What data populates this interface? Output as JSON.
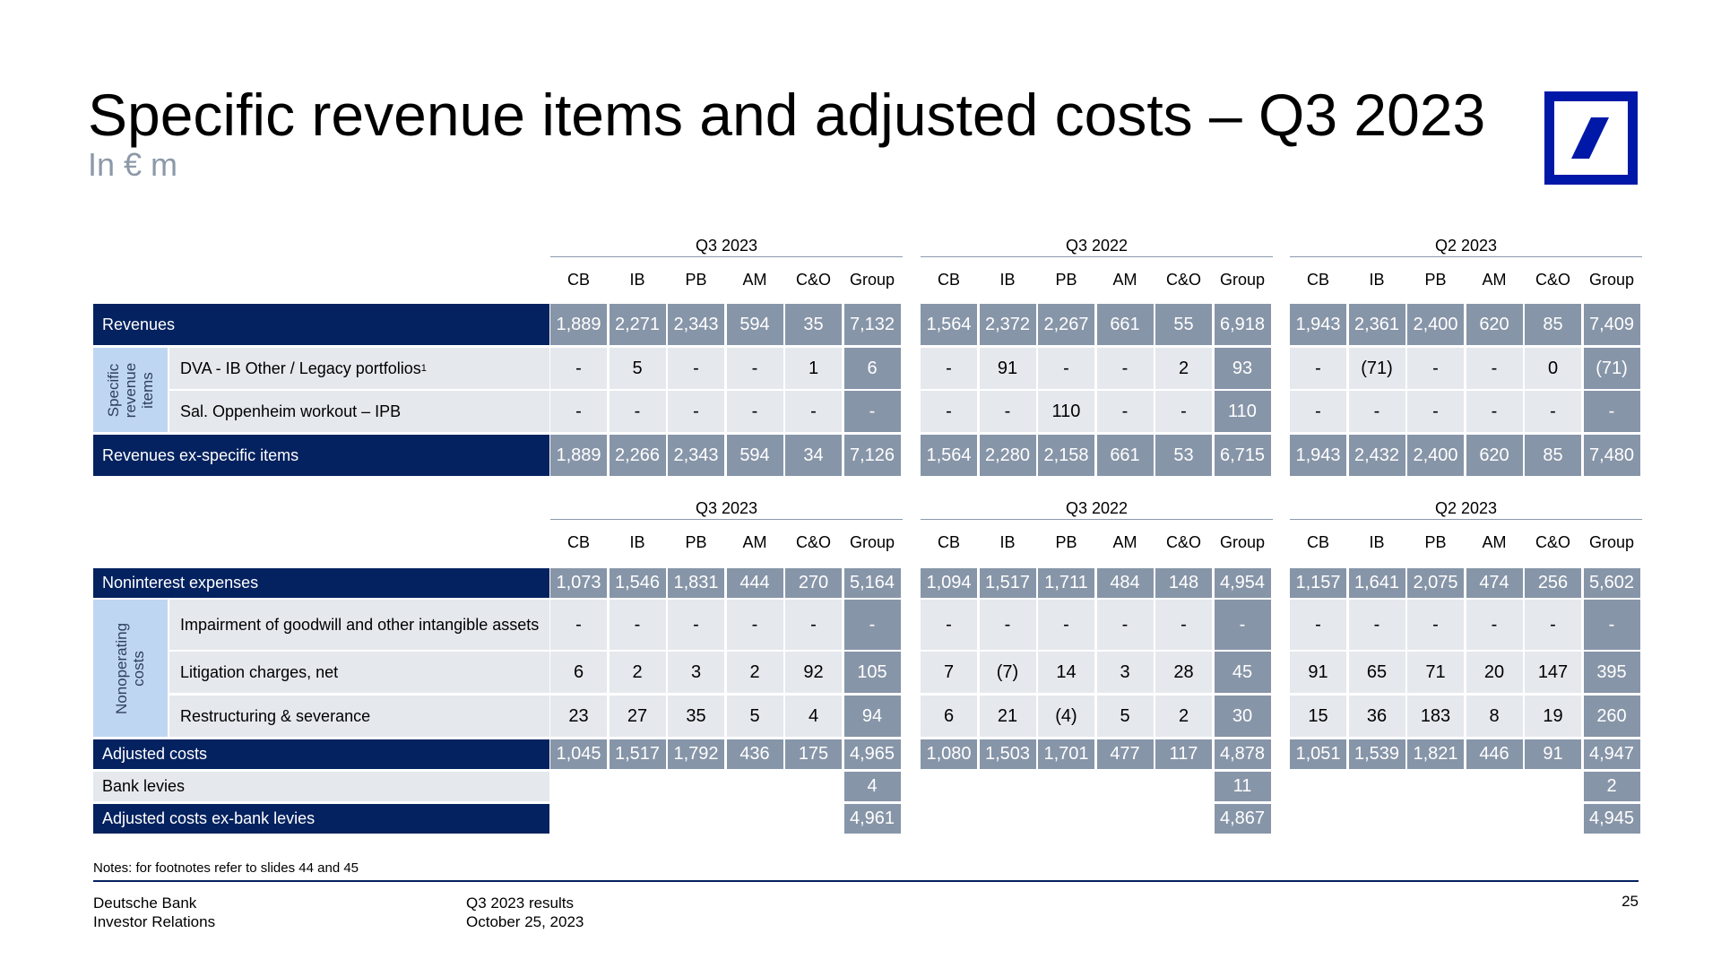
{
  "header": {
    "title": "Specific revenue items and adjusted costs – Q3 2023",
    "subtitle": "In € m"
  },
  "periods": [
    "Q3 2023",
    "Q3 2022",
    "Q2 2023"
  ],
  "columns": [
    "CB",
    "IB",
    "PB",
    "AM",
    "C&O",
    "Group"
  ],
  "table1": {
    "group_label": "Specific revenue items",
    "rows": [
      {
        "label": "Revenues",
        "style": "dark",
        "values": [
          [
            "1,889",
            "2,271",
            "2,343",
            "594",
            "35",
            "7,132"
          ],
          [
            "1,564",
            "2,372",
            "2,267",
            "661",
            "55",
            "6,918"
          ],
          [
            "1,943",
            "2,361",
            "2,400",
            "620",
            "85",
            "7,409"
          ]
        ]
      },
      {
        "label": "DVA - IB Other / Legacy portfolios",
        "sup": "1",
        "style": "light",
        "values": [
          [
            "-",
            "5",
            "-",
            "-",
            "1",
            "6"
          ],
          [
            "-",
            "91",
            "-",
            "-",
            "2",
            "93"
          ],
          [
            "-",
            "(71)",
            "-",
            "-",
            "0",
            "(71)"
          ]
        ]
      },
      {
        "label": "Sal. Oppenheim workout – IPB",
        "style": "light",
        "values": [
          [
            "-",
            "-",
            "-",
            "-",
            "-",
            "-"
          ],
          [
            "-",
            "-",
            "110",
            "-",
            "-",
            "110"
          ],
          [
            "-",
            "-",
            "-",
            "-",
            "-",
            "-"
          ]
        ]
      },
      {
        "label": "Revenues ex-specific items",
        "style": "dark",
        "values": [
          [
            "1,889",
            "2,266",
            "2,343",
            "594",
            "34",
            "7,126"
          ],
          [
            "1,564",
            "2,280",
            "2,158",
            "661",
            "53",
            "6,715"
          ],
          [
            "1,943",
            "2,432",
            "2,400",
            "620",
            "85",
            "7,480"
          ]
        ]
      }
    ]
  },
  "table2": {
    "group_label": "Nonoperating costs",
    "rows": [
      {
        "label": "Noninterest expenses",
        "style": "dark",
        "values": [
          [
            "1,073",
            "1,546",
            "1,831",
            "444",
            "270",
            "5,164"
          ],
          [
            "1,094",
            "1,517",
            "1,711",
            "484",
            "148",
            "4,954"
          ],
          [
            "1,157",
            "1,641",
            "2,075",
            "474",
            "256",
            "5,602"
          ]
        ]
      },
      {
        "label": "Impairment of goodwill and other intangible assets",
        "style": "light",
        "values": [
          [
            "-",
            "-",
            "-",
            "-",
            "-",
            "-"
          ],
          [
            "-",
            "-",
            "-",
            "-",
            "-",
            "-"
          ],
          [
            "-",
            "-",
            "-",
            "-",
            "-",
            "-"
          ]
        ]
      },
      {
        "label": "Litigation charges, net",
        "style": "light",
        "values": [
          [
            "6",
            "2",
            "3",
            "2",
            "92",
            "105"
          ],
          [
            "7",
            "(7)",
            "14",
            "3",
            "28",
            "45"
          ],
          [
            "91",
            "65",
            "71",
            "20",
            "147",
            "395"
          ]
        ]
      },
      {
        "label": "Restructuring & severance",
        "style": "light",
        "values": [
          [
            "23",
            "27",
            "35",
            "5",
            "4",
            "94"
          ],
          [
            "6",
            "21",
            "(4)",
            "5",
            "2",
            "30"
          ],
          [
            "15",
            "36",
            "183",
            "8",
            "19",
            "260"
          ]
        ]
      },
      {
        "label": "Adjusted costs",
        "style": "dark",
        "values": [
          [
            "1,045",
            "1,517",
            "1,792",
            "436",
            "175",
            "4,965"
          ],
          [
            "1,080",
            "1,503",
            "1,701",
            "477",
            "117",
            "4,878"
          ],
          [
            "1,051",
            "1,539",
            "1,821",
            "446",
            "91",
            "4,947"
          ]
        ]
      },
      {
        "label": "Bank levies",
        "style": "light",
        "group_only": true,
        "values": [
          [
            "4"
          ],
          [
            "11"
          ],
          [
            "2"
          ]
        ]
      },
      {
        "label": "Adjusted costs ex-bank levies",
        "style": "dark",
        "group_only": true,
        "values": [
          [
            "4,961"
          ],
          [
            "4,867"
          ],
          [
            "4,945"
          ]
        ]
      }
    ]
  },
  "footer": {
    "notes": "Notes: for footnotes refer to slides 44 and 45",
    "company": "Deutsche Bank",
    "department": "Investor Relations",
    "report": "Q3 2023 results",
    "date": "October 25, 2023",
    "page": "25"
  },
  "colors": {
    "navy": "#04225f",
    "slate": "#8795a8",
    "light": "#e5e8ed",
    "group_blue": "#bfd6f2",
    "logo_blue": "#0018a8"
  }
}
